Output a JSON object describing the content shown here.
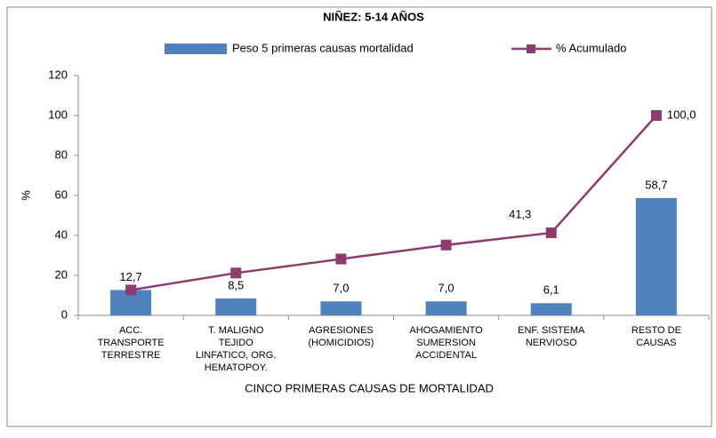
{
  "chart_data": {
    "type": "bar",
    "title": "NIÑEZ: 5-14 AÑOS",
    "x_label": "CINCO PRIMERAS CAUSAS DE MORTALIDAD",
    "y_label": "%",
    "categories": [
      [
        "ACC.",
        "TRANSPORTE",
        "TERRESTRE"
      ],
      [
        "T. MALIGNO",
        "TEJIDO",
        "LINFATICO, ORG.",
        "HEMATOPOY."
      ],
      [
        "AGRESIONES",
        "(HOMICIDIOS)"
      ],
      [
        "AHOGAMIENTO",
        "SUMERSION",
        "ACCIDENTAL"
      ],
      [
        "ENF. SISTEMA",
        "NERVIOSO"
      ],
      [
        "RESTO DE",
        "CAUSAS"
      ]
    ],
    "series": [
      {
        "name": "Peso 5 primeras causas mortalidad",
        "type": "bar",
        "color": "#4f81bd",
        "values": [
          12.7,
          8.5,
          7.0,
          7.0,
          6.1,
          58.7
        ],
        "value_labels": [
          "12,7",
          "8,5",
          "7,0",
          "7,0",
          "6,1",
          "58,7"
        ]
      },
      {
        "name": "% Acumulado",
        "type": "line",
        "color": "#8e3b6f",
        "values": [
          12.7,
          21.2,
          28.2,
          35.2,
          41.3,
          100.0
        ],
        "value_labels": [
          null,
          null,
          null,
          null,
          "41,3",
          "100,0"
        ]
      }
    ],
    "ylim": [
      0,
      120
    ],
    "yticks": [
      0,
      20,
      40,
      60,
      80,
      100,
      120
    ],
    "grid": false,
    "legend": "top"
  }
}
